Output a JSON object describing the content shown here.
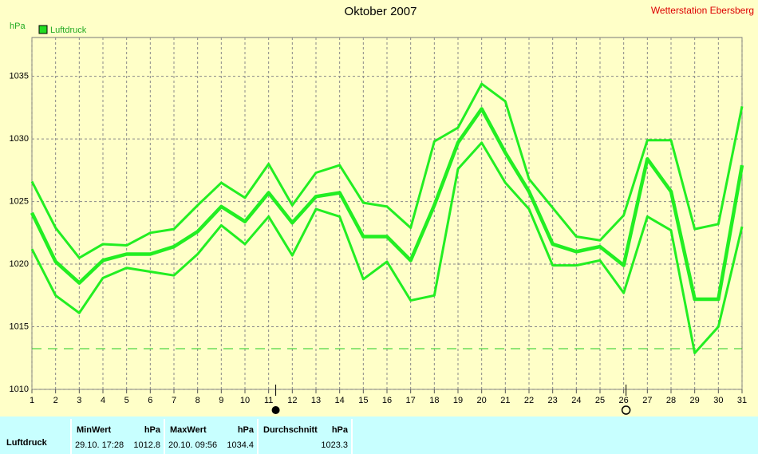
{
  "chart_data": {
    "type": "line",
    "title": "Oktober 2007",
    "station": "Wetterstation Ebersberg",
    "y_label": "hPa",
    "legend_label": "Luftdruck",
    "legend_color": "#22dd22",
    "x": [
      1,
      2,
      3,
      4,
      5,
      6,
      7,
      8,
      9,
      10,
      11,
      12,
      13,
      14,
      15,
      16,
      17,
      18,
      19,
      20,
      21,
      22,
      23,
      24,
      25,
      26,
      27,
      28,
      29,
      30,
      31
    ],
    "xlim": [
      1,
      31
    ],
    "xticks": [
      1,
      2,
      3,
      4,
      5,
      6,
      7,
      8,
      9,
      10,
      11,
      12,
      13,
      14,
      15,
      16,
      17,
      18,
      19,
      20,
      21,
      22,
      23,
      24,
      25,
      26,
      27,
      28,
      29,
      30,
      31
    ],
    "ylim": [
      1010,
      1038.1
    ],
    "yticks": [
      1010,
      1015,
      1020,
      1025,
      1030,
      1035
    ],
    "grid": true,
    "reference_line": 1013.25,
    "new_moon_x": 11.3,
    "full_moon_x": 26.1,
    "series": [
      {
        "color": "#22ee22",
        "width": 3,
        "values": [
          1026.6,
          1022.9,
          1020.5,
          1021.6,
          1021.5,
          1022.5,
          1022.8,
          1024.7,
          1026.5,
          1025.3,
          1028.0,
          1024.7,
          1027.3,
          1027.9,
          1024.9,
          1024.6,
          1022.9,
          1029.8,
          1030.9,
          1034.4,
          1033.0,
          1026.8,
          1024.5,
          1022.2,
          1021.9,
          1023.9,
          1029.9,
          1029.9,
          1022.8,
          1023.2,
          1032.6
        ]
      },
      {
        "color": "#22ee22",
        "width": 4.5,
        "values": [
          1024.1,
          1020.2,
          1018.5,
          1020.3,
          1020.8,
          1020.8,
          1021.4,
          1022.6,
          1024.6,
          1023.4,
          1025.7,
          1023.3,
          1025.4,
          1025.7,
          1022.2,
          1022.2,
          1020.3,
          1024.7,
          1029.7,
          1032.4,
          1028.9,
          1025.8,
          1021.6,
          1021.0,
          1021.4,
          1019.9,
          1028.4,
          1025.8,
          1017.2,
          1017.2,
          1027.9
        ]
      },
      {
        "color": "#22ee22",
        "width": 3,
        "values": [
          1021.2,
          1017.5,
          1016.1,
          1018.9,
          1019.7,
          1019.4,
          1019.1,
          1020.8,
          1023.1,
          1021.6,
          1023.8,
          1020.7,
          1024.4,
          1023.8,
          1018.8,
          1020.2,
          1017.1,
          1017.5,
          1027.6,
          1029.7,
          1026.5,
          1024.4,
          1019.9,
          1019.9,
          1020.3,
          1017.7,
          1023.8,
          1022.7,
          1012.9,
          1015.0,
          1023.0
        ]
      }
    ]
  },
  "table": {
    "row_label": "Luftdruck",
    "columns": [
      {
        "header": "MinWert",
        "unit": "hPa",
        "time": "29.10.  17:28",
        "value": "1012.8"
      },
      {
        "header": "MaxWert",
        "unit": "hPa",
        "time": "20.10.  09:56",
        "value": "1034.4"
      },
      {
        "header": "Durchschnitt",
        "unit": "hPa",
        "value": "1023.3"
      }
    ]
  }
}
